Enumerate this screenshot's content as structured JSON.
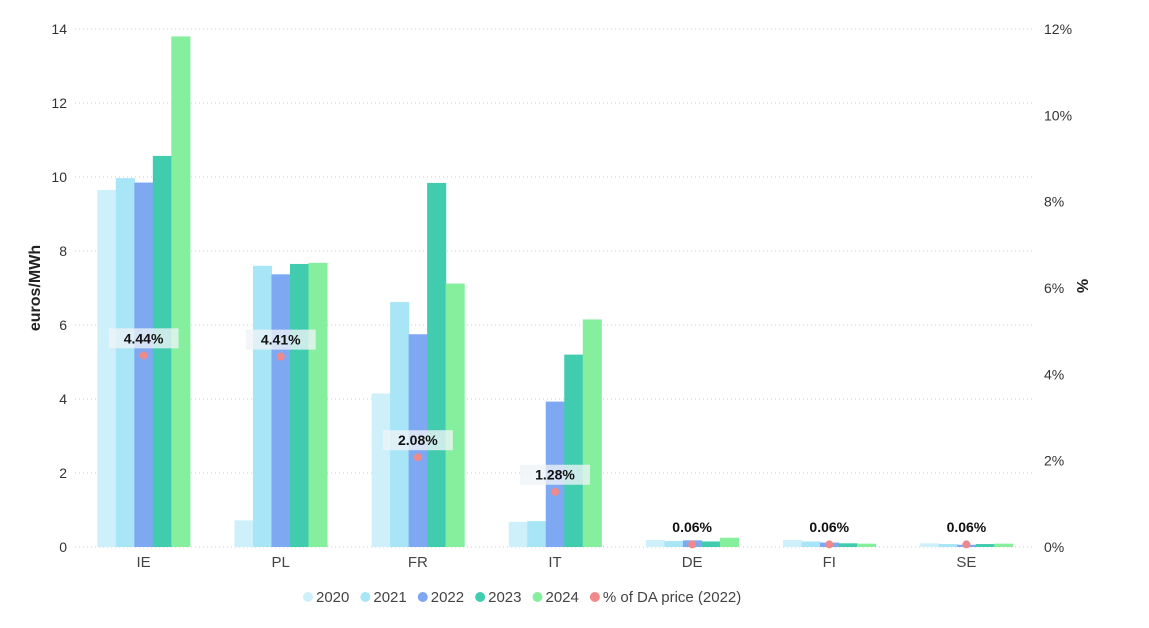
{
  "chart_data": {
    "type": "bar",
    "categories": [
      "IE",
      "PL",
      "FR",
      "IT",
      "DE",
      "FI",
      "SE"
    ],
    "series": [
      {
        "name": "2020",
        "color": "#cdf0fa",
        "values": [
          9.65,
          0.72,
          4.15,
          0.68,
          0.19,
          0.19,
          0.1
        ]
      },
      {
        "name": "2021",
        "color": "#a8e6f7",
        "values": [
          9.97,
          7.6,
          6.62,
          0.7,
          0.16,
          0.15,
          0.08
        ]
      },
      {
        "name": "2022",
        "color": "#7ea8f2",
        "values": [
          9.85,
          7.37,
          5.75,
          3.93,
          0.18,
          0.12,
          0.06
        ]
      },
      {
        "name": "2023",
        "color": "#41ccb0",
        "values": [
          10.57,
          7.65,
          9.84,
          5.2,
          0.15,
          0.1,
          0.08
        ]
      },
      {
        "name": "2024",
        "color": "#86ef9e",
        "values": [
          13.8,
          7.68,
          7.12,
          6.15,
          0.25,
          0.09,
          0.09
        ]
      }
    ],
    "secondary_series": {
      "name": "% of DA price (2022)",
      "color": "#f08a8a",
      "values": [
        4.44,
        4.41,
        2.08,
        1.28,
        0.06,
        0.06,
        0.06
      ],
      "labels": [
        "4.44%",
        "4.41%",
        "2.08%",
        "1.28%",
        "0.06%",
        "0.06%",
        "0.06%"
      ]
    },
    "title": "",
    "xlabel": "",
    "ylabel": "euros/MWh",
    "y2label": "%",
    "ylim": [
      0,
      14
    ],
    "y2lim": [
      0,
      12
    ],
    "yticks": [
      "0",
      "2",
      "4",
      "6",
      "8",
      "10",
      "12",
      "14"
    ],
    "y2ticks": [
      "0%",
      "2%",
      "4%",
      "6%",
      "8%",
      "10%",
      "12%"
    ],
    "grid": true,
    "legend_position": "bottom"
  }
}
